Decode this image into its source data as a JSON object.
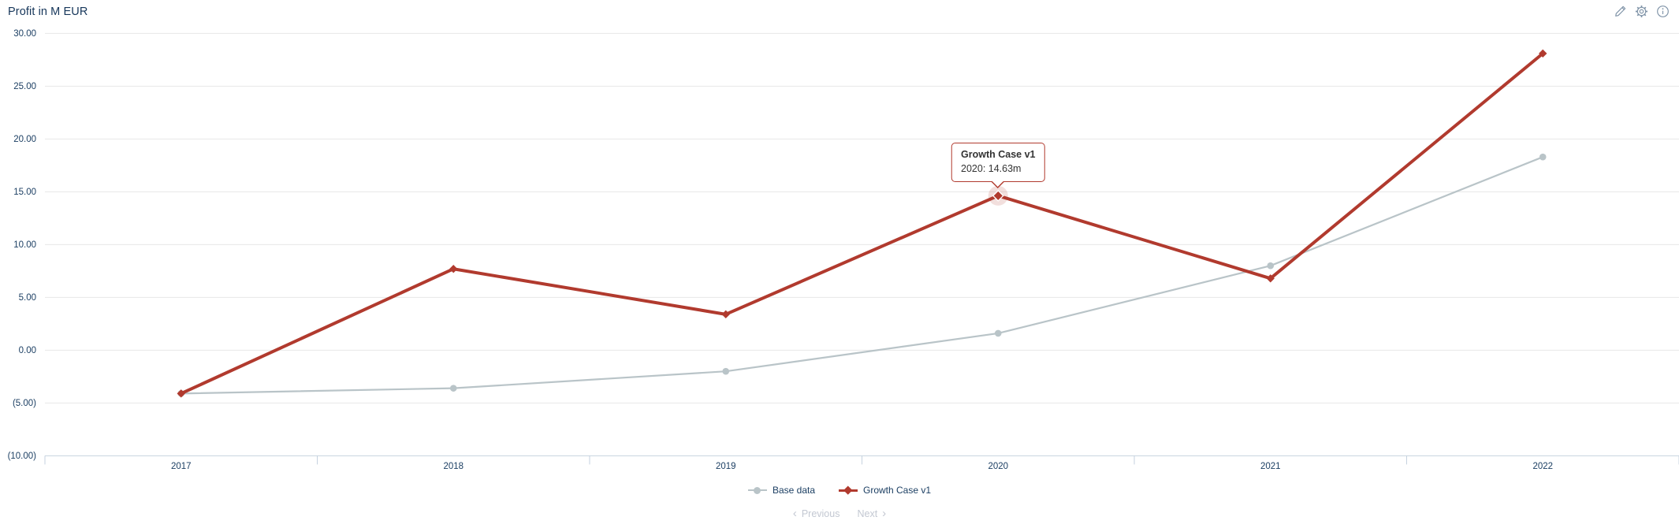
{
  "header": {
    "title": "Profit in M EUR",
    "icons": [
      "edit-icon",
      "settings-gear-icon",
      "info-icon"
    ]
  },
  "chart_data": {
    "type": "line",
    "title": "Profit in M EUR",
    "x": [
      2017,
      2018,
      2019,
      2020,
      2021,
      2022
    ],
    "series": [
      {
        "name": "Base data",
        "marker": "circle",
        "values": [
          -4.1,
          -3.6,
          -2.0,
          1.6,
          8.0,
          18.3
        ]
      },
      {
        "name": "Growth Case v1",
        "marker": "diamond",
        "values": [
          -4.1,
          7.7,
          3.4,
          14.63,
          6.8,
          28.1
        ]
      }
    ],
    "ylim": [
      -10,
      30
    ],
    "ytick_values": [
      30,
      25,
      20,
      15,
      10,
      5,
      0,
      -5,
      -10
    ],
    "ytick_labels": [
      "30.00",
      "25.00",
      "20.00",
      "15.00",
      "10.00",
      "5.00",
      "0.00",
      "(5.00)",
      "(10.00)"
    ],
    "grid": true,
    "legend_position": "bottom",
    "tooltip": {
      "series": "Growth Case v1",
      "label": "2020: 14.63m",
      "year": 2020,
      "value": 14.63,
      "series_index": 1,
      "point_index": 3
    }
  },
  "pager": {
    "prev_chevron": "‹",
    "previous_label": "Previous",
    "next_label": "Next",
    "next_chevron": "›"
  },
  "colors": {
    "accent": "#b13a2e",
    "series_gray": "#b9c4c8",
    "text": "#1c3f63",
    "title": "#16365a",
    "grid": "#e7e7e7",
    "axis": "#c6d2df",
    "icon": "#8094a8",
    "pager_disabled": "#c3c8d2",
    "tooltip_bg": "#ffffff",
    "tooltip_text": "#333333"
  }
}
